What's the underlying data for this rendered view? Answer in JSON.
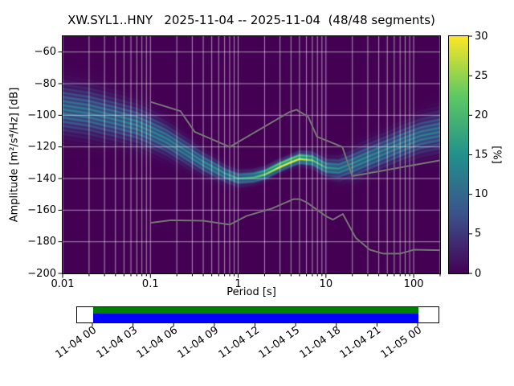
{
  "figure": {
    "title": "XW.SYL1..HNY   2025-11-04 -- 2025-11-04  (48/48 segments)"
  },
  "chart_data": {
    "type": "heatmap",
    "subtype": "ppsd_probability_density",
    "title": "XW.SYL1..HNY   2025-11-04 -- 2025-11-04  (48/48 segments)",
    "xlabel": "Period [s]",
    "ylabel": "Amplitude [m²/s⁴/Hz] [dB]",
    "x_scale": "log",
    "xlim": [
      0.01,
      200
    ],
    "ylim": [
      -200,
      -50
    ],
    "grid": true,
    "xtick_labels": [
      "0.01",
      "0.1",
      "1",
      "10",
      "100"
    ],
    "xtick_values": [
      0.01,
      0.1,
      1,
      10,
      100
    ],
    "ytick_labels": [
      "−60",
      "−80",
      "−100",
      "−120",
      "−140",
      "−160",
      "−180",
      "−200"
    ],
    "yticks": [
      -60,
      -80,
      -100,
      -120,
      -140,
      -160,
      -180,
      -200
    ],
    "colorbar": {
      "label": "[%]",
      "ticks": [
        0,
        5,
        10,
        15,
        20,
        25,
        30
      ],
      "max": 30,
      "colormap": "viridis",
      "stops": [
        "#440154",
        "#3b528b",
        "#21918c",
        "#5ec962",
        "#fde725"
      ]
    },
    "ppsd": {
      "periods_s": [
        0.01,
        0.02,
        0.04,
        0.07,
        0.1,
        0.15,
        0.25,
        0.4,
        0.7,
        1.0,
        1.5,
        2,
        3,
        4,
        5,
        7,
        10,
        14,
        20,
        30,
        50,
        80,
        120,
        200
      ],
      "mode_db": [
        -96,
        -98,
        -102,
        -106,
        -110,
        -115,
        -123,
        -130,
        -137,
        -140,
        -139,
        -137,
        -132,
        -129,
        -127,
        -128,
        -133,
        -134,
        -131,
        -127,
        -122,
        -117,
        -113,
        -110
      ],
      "spread_db": [
        9,
        9,
        8,
        7,
        7,
        6,
        5,
        4,
        3,
        2.6,
        2.4,
        2.2,
        2.0,
        2.0,
        2.2,
        2.6,
        3.2,
        4,
        5,
        5.5,
        6,
        6.5,
        7,
        7.5
      ],
      "peak_probability_percent": [
        12,
        12,
        12,
        13,
        13,
        13,
        13,
        14,
        15,
        16,
        18,
        24,
        30,
        30,
        28,
        22,
        16,
        14,
        14,
        14,
        13,
        13,
        12,
        12
      ]
    },
    "noise_models": {
      "color": "#737373",
      "nhnm": {
        "periods_s": [
          0.1,
          0.22,
          0.32,
          0.8,
          3.8,
          4.6,
          6.3,
          7.9,
          15.4,
          20.0,
          200.0
        ],
        "db": [
          -91.5,
          -97.4,
          -110.5,
          -120.0,
          -98.1,
          -96.5,
          -101.0,
          -113.5,
          -120.0,
          -138.5,
          -128.5
        ]
      },
      "nlnm": {
        "periods_s": [
          0.1,
          0.17,
          0.4,
          0.8,
          1.24,
          2.4,
          4.3,
          5.0,
          6.0,
          10.0,
          12.0,
          15.6,
          21.9,
          31.6,
          45.0,
          70.0,
          101.0,
          200.0
        ],
        "db": [
          -168.0,
          -166.4,
          -166.7,
          -169.2,
          -163.7,
          -159.0,
          -153.0,
          -153.0,
          -155.0,
          -163.8,
          -166.0,
          -162.4,
          -177.5,
          -185.0,
          -187.5,
          -187.5,
          -185.0,
          -185.3
        ]
      }
    }
  },
  "timeline": {
    "labels": [
      "11-04 00",
      "11-04 03",
      "11-04 06",
      "11-04 09",
      "11-04 12",
      "11-04 15",
      "11-04 18",
      "11-04 21",
      "11-05 00"
    ],
    "segments_color": "#008000",
    "data_color": "#0000ff"
  }
}
